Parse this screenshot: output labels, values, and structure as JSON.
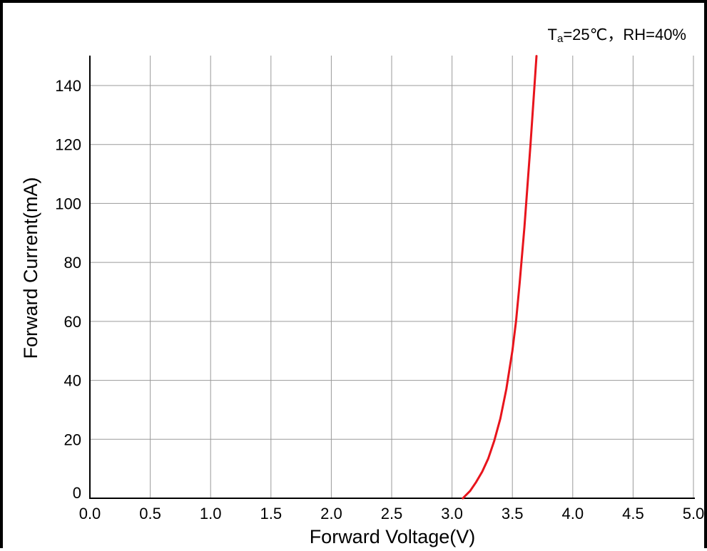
{
  "chart_data": {
    "type": "line",
    "annotation_text": "Ta=25℃，RH=40%",
    "annotation_subscript": "a",
    "xlabel": "Forward Voltage(V)",
    "ylabel": "Forward Current(mA)",
    "xlim": [
      0,
      5.0
    ],
    "ylim": [
      0,
      150
    ],
    "xticks": [
      "0.0",
      "0.5",
      "1.0",
      "1.5",
      "2.0",
      "2.5",
      "3.0",
      "3.5",
      "4.0",
      "4.5",
      "5.0"
    ],
    "yticks": [
      "0",
      "20",
      "40",
      "60",
      "80",
      "100",
      "120",
      "140"
    ],
    "grid": true,
    "series": [
      {
        "color": "#e8141c",
        "x": [
          3.09,
          3.15,
          3.2,
          3.25,
          3.3,
          3.35,
          3.4,
          3.45,
          3.5,
          3.53,
          3.56,
          3.6,
          3.65,
          3.7
        ],
        "y": [
          0,
          2.5,
          5.5,
          9,
          13.5,
          19.5,
          27,
          37,
          50,
          60,
          73,
          92,
          120,
          150
        ]
      }
    ]
  }
}
